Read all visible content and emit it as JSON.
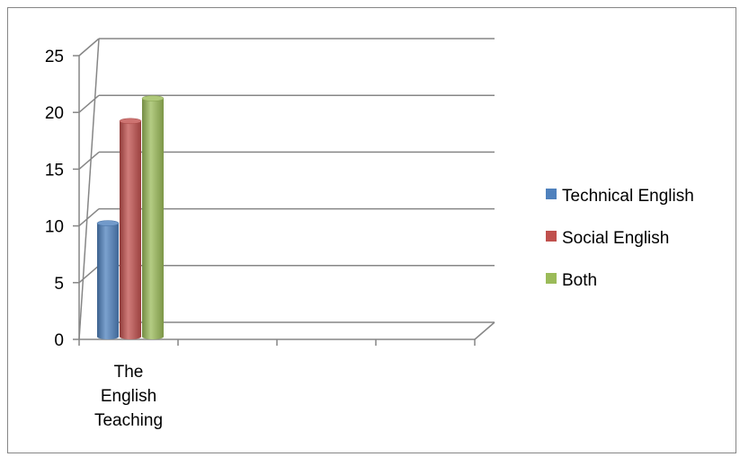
{
  "chart_data": {
    "type": "bar",
    "style": "3d-cylinder",
    "categories": [
      "The English Teaching"
    ],
    "category_lines": [
      [
        "The",
        "English",
        "Teaching"
      ]
    ],
    "series": [
      {
        "name": "Technical English",
        "color": "#4F81BD",
        "values": [
          10
        ]
      },
      {
        "name": "Social English",
        "color": "#C0504D",
        "values": [
          19
        ]
      },
      {
        "name": "Both",
        "color": "#9BBB59",
        "values": [
          21
        ]
      }
    ],
    "ylim": [
      0,
      25
    ],
    "yticks": [
      0,
      5,
      10,
      15,
      20,
      25
    ],
    "grid": true,
    "legend_position": "right",
    "title": "",
    "xlabel": "",
    "ylabel": ""
  }
}
